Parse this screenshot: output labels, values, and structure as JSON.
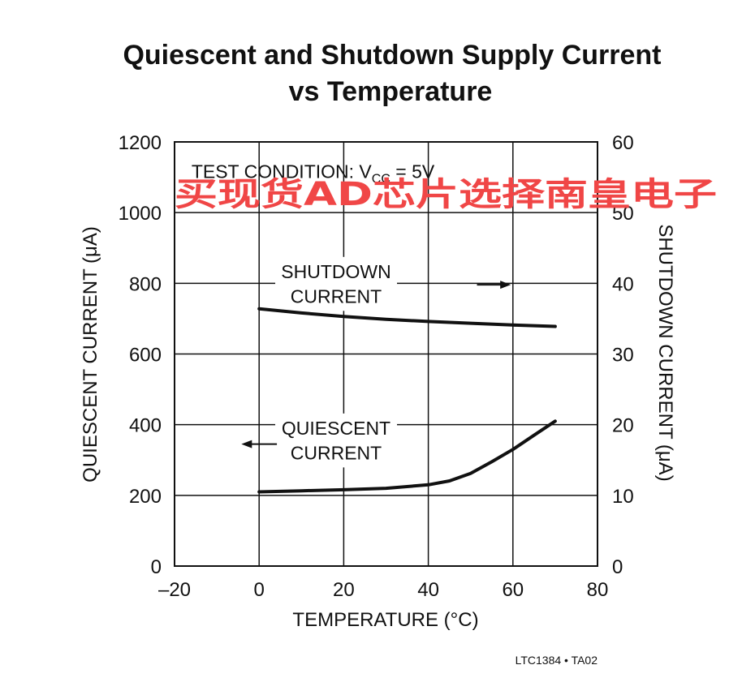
{
  "chart_data": {
    "type": "line",
    "title_line1": "Quiescent and Shutdown Supply Current",
    "title_line2": "vs Temperature",
    "xlabel": "TEMPERATURE (°C)",
    "ylabel_left": "QUIESCENT CURRENT (μA)",
    "ylabel_right": "SHUTDOWN CURRENT (μA)",
    "xlim": [
      -20,
      80
    ],
    "ylim_left": [
      0,
      1200
    ],
    "ylim_right": [
      0,
      60
    ],
    "x_ticks": [
      -20,
      0,
      20,
      40,
      60,
      80
    ],
    "x_tick_labels": [
      "–20",
      "0",
      "20",
      "40",
      "60",
      "80"
    ],
    "y_left_ticks": [
      0,
      200,
      400,
      600,
      800,
      1000,
      1200
    ],
    "y_left_tick_labels": [
      "0",
      "200",
      "400",
      "600",
      "800",
      "1000",
      "1200"
    ],
    "y_right_ticks": [
      0,
      10,
      20,
      30,
      40,
      50,
      60
    ],
    "y_right_tick_labels": [
      "0",
      "10",
      "20",
      "30",
      "40",
      "50",
      "60"
    ],
    "grid": true,
    "test_condition": {
      "prefix": "TEST CONDITION: V",
      "subscript": "CC",
      "suffix": " = 5V"
    },
    "series": [
      {
        "name": "SHUTDOWN CURRENT",
        "axis": "right",
        "x": [
          0,
          10,
          20,
          30,
          40,
          50,
          60,
          70
        ],
        "y": [
          36.4,
          35.8,
          35.3,
          34.9,
          34.6,
          34.35,
          34.1,
          33.9
        ]
      },
      {
        "name": "QUIESCENT CURRENT",
        "axis": "left",
        "x": [
          0,
          10,
          20,
          30,
          40,
          45,
          50,
          55,
          60,
          65,
          70
        ],
        "y": [
          210,
          213,
          216,
          220,
          230,
          241,
          262,
          295,
          330,
          370,
          410
        ]
      }
    ],
    "annotations": [
      {
        "lines": [
          "SHUTDOWN",
          "CURRENT"
        ],
        "arrow": "right"
      },
      {
        "lines": [
          "QUIESCENT",
          "CURRENT"
        ],
        "arrow": "left"
      }
    ]
  },
  "footer_code": "LTC1384 • TA02",
  "watermark_text": "买现货AD芯片选择南皇电子",
  "colors": {
    "line": "#111111",
    "watermark": "#f04646",
    "background": "#ffffff"
  }
}
